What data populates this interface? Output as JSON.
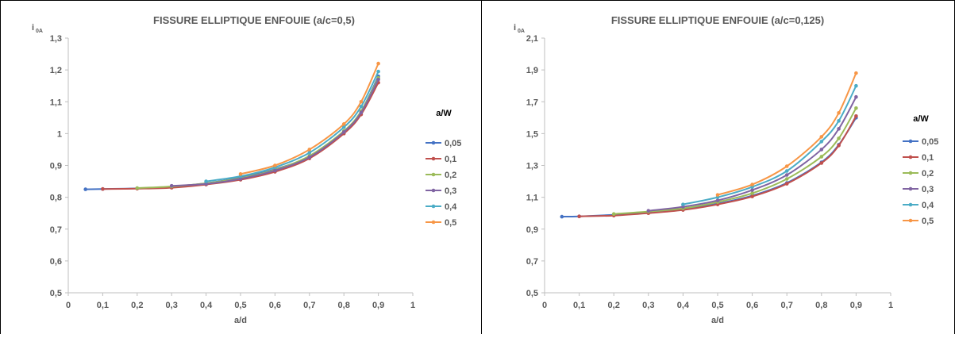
{
  "chart_data": [
    {
      "type": "line",
      "title": "FISSURE ELLIPTIQUE ENFOUIE (a/c=0,5)",
      "ylabel_main": "i",
      "ylabel_sub": "0A",
      "xlabel": "a/d",
      "legend_title": "a/W",
      "xlim": [
        0,
        1
      ],
      "ylim": [
        0.5,
        1.3
      ],
      "xticks": [
        "0",
        "0,1",
        "0,2",
        "0,3",
        "0,4",
        "0,5",
        "0,6",
        "0,7",
        "0,8",
        "0,9",
        "1"
      ],
      "yticks": [
        "0,5",
        "0,6",
        "0,7",
        "0,8",
        "0,9",
        "1",
        "1,1",
        "1,2",
        "1,3"
      ],
      "series": [
        {
          "name": "0,05",
          "color": "#4472C4",
          "x": [
            0.05,
            0.1,
            0.2,
            0.3,
            0.4,
            0.5,
            0.6,
            0.7,
            0.8,
            0.85,
            0.9
          ],
          "y": [
            0.825,
            0.826,
            0.828,
            0.833,
            0.844,
            0.862,
            0.888,
            0.928,
            1.005,
            1.07,
            1.18
          ]
        },
        {
          "name": "0,1",
          "color": "#C0504D",
          "x": [
            0.1,
            0.2,
            0.3,
            0.4,
            0.5,
            0.6,
            0.7,
            0.8,
            0.85,
            0.9
          ],
          "y": [
            0.826,
            0.827,
            0.83,
            0.84,
            0.855,
            0.88,
            0.922,
            1.0,
            1.06,
            1.16
          ]
        },
        {
          "name": "0,2",
          "color": "#9BBB59",
          "x": [
            0.2,
            0.3,
            0.4,
            0.5,
            0.6,
            0.7,
            0.8,
            0.85,
            0.9
          ],
          "y": [
            0.829,
            0.834,
            0.844,
            0.86,
            0.886,
            0.93,
            1.008,
            1.07,
            1.175
          ]
        },
        {
          "name": "0,3",
          "color": "#8064A2",
          "x": [
            0.3,
            0.4,
            0.5,
            0.6,
            0.7,
            0.8,
            0.85,
            0.9
          ],
          "y": [
            0.836,
            0.842,
            0.858,
            0.884,
            0.926,
            1.005,
            1.066,
            1.17
          ]
        },
        {
          "name": "0,4",
          "color": "#4BACC6",
          "x": [
            0.4,
            0.5,
            0.6,
            0.7,
            0.8,
            0.85,
            0.9
          ],
          "y": [
            0.85,
            0.866,
            0.894,
            0.94,
            1.02,
            1.085,
            1.195
          ]
        },
        {
          "name": "0,5",
          "color": "#F79646",
          "x": [
            0.5,
            0.6,
            0.7,
            0.8,
            0.85,
            0.9
          ],
          "y": [
            0.873,
            0.9,
            0.95,
            1.03,
            1.1,
            1.22
          ]
        }
      ]
    },
    {
      "type": "line",
      "title": "FISSURE ELLIPTIQUE ENFOUIE (a/c=0,125)",
      "ylabel_main": "i",
      "ylabel_sub": "0A",
      "xlabel": "a/d",
      "legend_title": "a/W",
      "xlim": [
        0,
        1
      ],
      "ylim": [
        0.5,
        2.1
      ],
      "xticks": [
        "0",
        "0,1",
        "0,2",
        "0,3",
        "0,4",
        "0,5",
        "0,6",
        "0,7",
        "0,8",
        "0,9",
        "1"
      ],
      "yticks": [
        "0,5",
        "0,7",
        "0,9",
        "1,1",
        "1,3",
        "1,5",
        "1,7",
        "1,9",
        "2,1"
      ],
      "series": [
        {
          "name": "0,05",
          "color": "#4472C4",
          "x": [
            0.05,
            0.1,
            0.2,
            0.3,
            0.4,
            0.5,
            0.6,
            0.7,
            0.8,
            0.85,
            0.9
          ],
          "y": [
            0.978,
            0.98,
            0.99,
            1.005,
            1.025,
            1.06,
            1.11,
            1.19,
            1.32,
            1.43,
            1.6
          ]
        },
        {
          "name": "0,1",
          "color": "#C0504D",
          "x": [
            0.1,
            0.2,
            0.3,
            0.4,
            0.5,
            0.6,
            0.7,
            0.8,
            0.85,
            0.9
          ],
          "y": [
            0.98,
            0.985,
            1.0,
            1.02,
            1.055,
            1.105,
            1.185,
            1.315,
            1.425,
            1.61
          ]
        },
        {
          "name": "0,2",
          "color": "#9BBB59",
          "x": [
            0.2,
            0.3,
            0.4,
            0.5,
            0.6,
            0.7,
            0.8,
            0.85,
            0.9
          ],
          "y": [
            0.995,
            1.01,
            1.03,
            1.07,
            1.125,
            1.215,
            1.355,
            1.47,
            1.66
          ]
        },
        {
          "name": "0,3",
          "color": "#8064A2",
          "x": [
            0.3,
            0.4,
            0.5,
            0.6,
            0.7,
            0.8,
            0.85,
            0.9
          ],
          "y": [
            1.015,
            1.04,
            1.08,
            1.145,
            1.24,
            1.4,
            1.53,
            1.73
          ]
        },
        {
          "name": "0,4",
          "color": "#4BACC6",
          "x": [
            0.4,
            0.5,
            0.6,
            0.7,
            0.8,
            0.85,
            0.9
          ],
          "y": [
            1.055,
            1.1,
            1.165,
            1.265,
            1.45,
            1.58,
            1.8
          ]
        },
        {
          "name": "0,5",
          "color": "#F79646",
          "x": [
            0.5,
            0.6,
            0.7,
            0.8,
            0.85,
            0.9
          ],
          "y": [
            1.115,
            1.18,
            1.295,
            1.48,
            1.63,
            1.88
          ]
        }
      ]
    }
  ]
}
